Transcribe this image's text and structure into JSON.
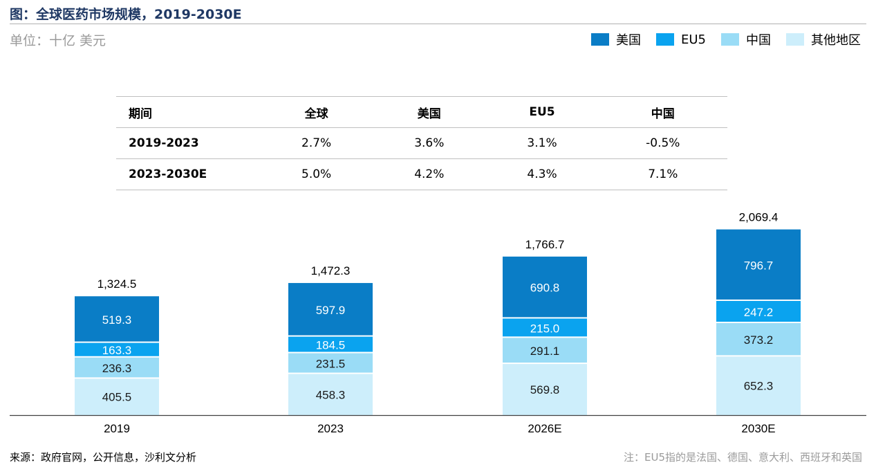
{
  "header": {
    "title": "图：全球医药市场规模，2019-2030E",
    "unit": "单位：十亿 美元"
  },
  "colors": {
    "us": "#0a7dc6",
    "eu5": "#0aa3ef",
    "china": "#9adcf6",
    "other": "#cdeefb",
    "title": "#1f3864"
  },
  "legend": [
    {
      "label": "美国",
      "color": "#0a7dc6"
    },
    {
      "label": "EU5",
      "color": "#0aa3ef"
    },
    {
      "label": "中国",
      "color": "#9adcf6"
    },
    {
      "label": "其他地区",
      "color": "#cdeefb"
    }
  ],
  "growth_table": {
    "headers": [
      "期间",
      "全球",
      "美国",
      "EU5",
      "中国"
    ],
    "rows": [
      [
        "2019-2023",
        "2.7%",
        "3.6%",
        "3.1%",
        "-0.5%"
      ],
      [
        "2023-2030E",
        "5.0%",
        "4.2%",
        "4.3%",
        "7.1%"
      ]
    ]
  },
  "chart_data": {
    "type": "bar",
    "stacked": true,
    "title": "全球医药市场规模，2019-2030E",
    "ylabel": "十亿 美元",
    "categories": [
      "2019",
      "2023",
      "2026E",
      "2030E"
    ],
    "series": [
      {
        "name": "其他地区",
        "values": [
          405.5,
          458.3,
          569.8,
          652.3
        ]
      },
      {
        "name": "中国",
        "values": [
          236.3,
          231.5,
          291.1,
          373.2
        ]
      },
      {
        "name": "EU5",
        "values": [
          163.3,
          184.5,
          215.0,
          247.2
        ]
      },
      {
        "name": "美国",
        "values": [
          519.3,
          597.9,
          690.8,
          796.7
        ]
      }
    ],
    "totals": [
      "1,324.5",
      "1,472.3",
      "1,766.7",
      "2,069.4"
    ],
    "value_labels": [
      [
        "405.5",
        "458.3",
        "569.8",
        "652.3"
      ],
      [
        "236.3",
        "231.5",
        "291.1",
        "373.2"
      ],
      [
        "163.3",
        "184.5",
        "215.0",
        "247.2"
      ],
      [
        "519.3",
        "597.9",
        "690.8",
        "796.7"
      ]
    ]
  },
  "footer": {
    "source": "来源：政府官网，公开信息，沙利文分析",
    "note": "注：EU5指的是法国、德国、意大利、西班牙和英国"
  }
}
